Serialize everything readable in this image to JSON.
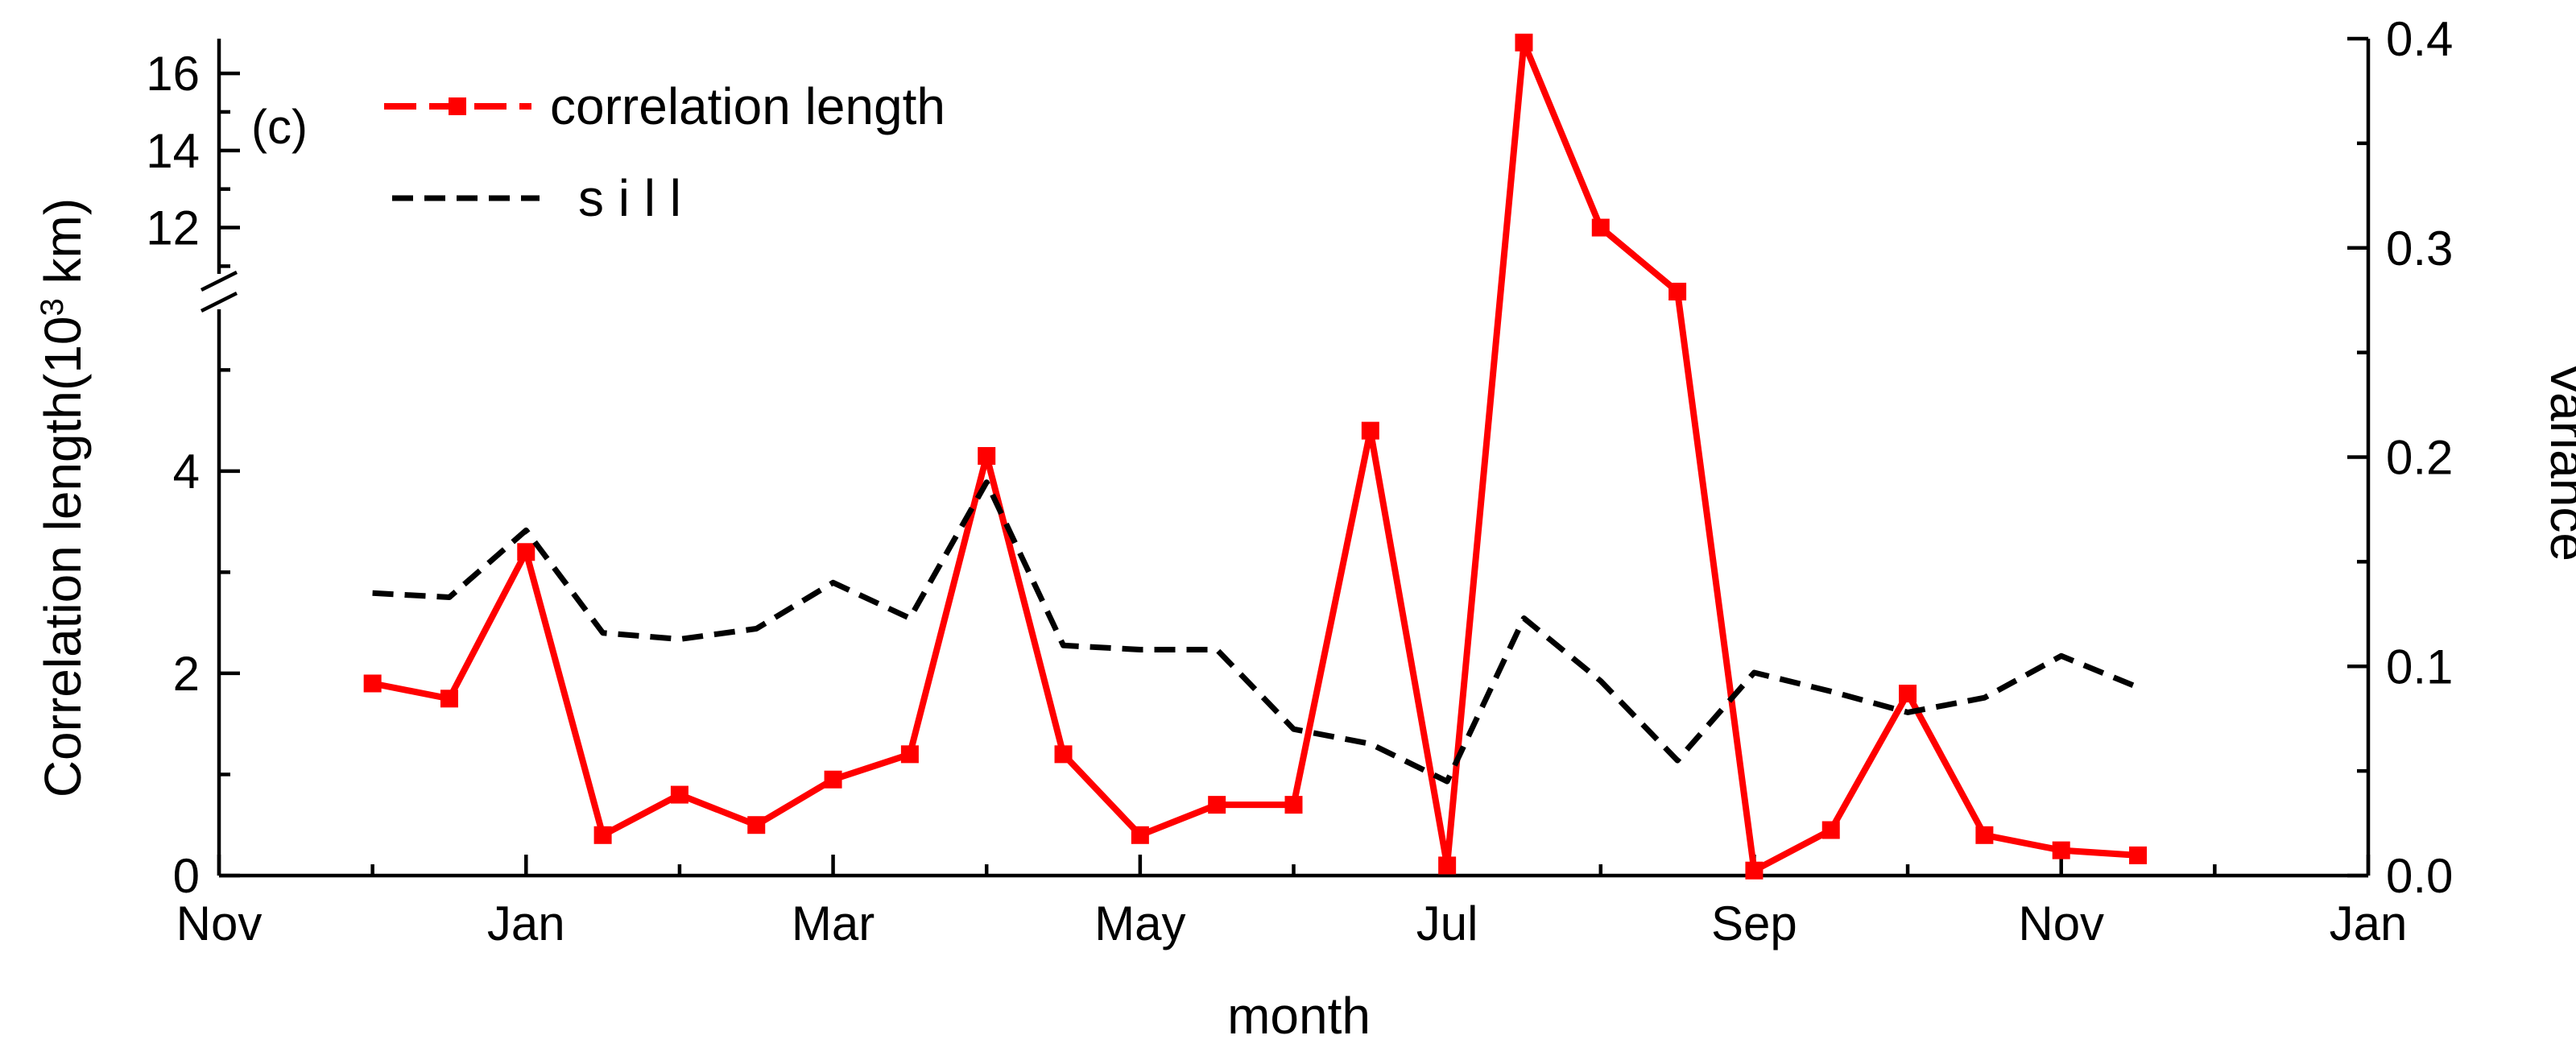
{
  "chart_data": {
    "type": "line",
    "panel_label": "(c)",
    "xlabel": "month",
    "ylabel_left": "Correlation length(10",
    "ylabel_left_sup": "3",
    "ylabel_left_unit": " km)",
    "ylabel_right": "Variance",
    "x_ticks": [
      {
        "pos": 0,
        "label": "Nov"
      },
      {
        "pos": 2,
        "label": "Jan"
      },
      {
        "pos": 4,
        "label": "Mar"
      },
      {
        "pos": 6,
        "label": "May"
      },
      {
        "pos": 8,
        "label": "Jul"
      },
      {
        "pos": 10,
        "label": "Sep"
      },
      {
        "pos": 12,
        "label": "Nov"
      },
      {
        "pos": 14,
        "label": "Jan"
      }
    ],
    "xlim": [
      0,
      14
    ],
    "y_left_lower": {
      "range": [
        0,
        5.6
      ],
      "ticks": [
        0,
        2,
        4
      ],
      "tick_labels": [
        "0",
        "2",
        "4"
      ]
    },
    "y_left_upper": {
      "range": [
        10.8,
        16.9
      ],
      "ticks": [
        12,
        14,
        16
      ],
      "tick_labels": [
        "12",
        "14",
        "16"
      ]
    },
    "y_right": {
      "range": [
        0,
        0.4
      ],
      "ticks": [
        0,
        0.1,
        0.2,
        0.3,
        0.4
      ],
      "tick_labels": [
        "0.0",
        "0.1",
        "0.2",
        "0.3",
        "0.4"
      ]
    },
    "series": [
      {
        "name": "correlation length",
        "axis": "left",
        "color": "#ff0000",
        "style": "solid-square-markers",
        "x": [
          1.0,
          1.5,
          2.0,
          2.5,
          3.0,
          3.5,
          4.0,
          4.5,
          5.0,
          5.5,
          6.0,
          6.5,
          7.0,
          7.5,
          8.0,
          8.5,
          9.0,
          9.5,
          10.0,
          10.5,
          11.0,
          11.5,
          12.0,
          12.5,
          13.0
        ],
        "values": [
          1.9,
          1.75,
          3.2,
          0.4,
          0.8,
          0.5,
          0.95,
          1.2,
          4.15,
          1.2,
          0.4,
          0.7,
          0.7,
          4.4,
          0.1,
          16.8,
          12.0,
          5.8,
          0.05,
          0.45,
          1.8,
          0.4,
          0.25,
          0.2,
          null
        ]
      },
      {
        "name": "s i l l",
        "axis": "right",
        "color": "#000000",
        "style": "dashed",
        "x": [
          1.0,
          1.5,
          2.0,
          2.5,
          3.0,
          3.5,
          4.0,
          4.5,
          5.0,
          5.5,
          6.0,
          6.5,
          7.0,
          7.5,
          8.0,
          8.5,
          9.0,
          9.5,
          10.0,
          10.5,
          11.0,
          11.5,
          12.0,
          12.5,
          13.0
        ],
        "values": [
          0.135,
          0.133,
          0.165,
          0.116,
          0.113,
          0.118,
          0.14,
          0.123,
          0.188,
          0.11,
          0.108,
          0.108,
          0.07,
          0.063,
          0.045,
          0.123,
          0.093,
          0.055,
          0.097,
          0.088,
          0.078,
          0.085,
          0.105,
          0.09,
          null
        ]
      }
    ],
    "legend_position": "top-left",
    "grid": false
  }
}
